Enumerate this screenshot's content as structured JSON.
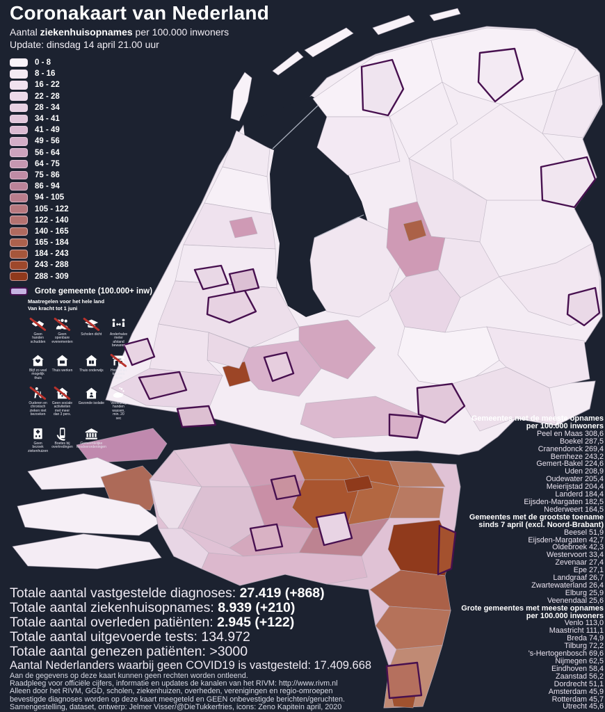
{
  "header": {
    "title": "Coronakaart van Nederland",
    "subtitle_prefix": "Aantal ",
    "subtitle_bold": "ziekenhuisopnames",
    "subtitle_suffix": " per 100.000 inwoners",
    "update": "Update: dinsdag 14 april 21.00 uur"
  },
  "legend": {
    "bins": [
      {
        "range": "0 - 8",
        "color": "#f9f3f9"
      },
      {
        "range": "8 - 16",
        "color": "#f4eaf3"
      },
      {
        "range": "16 - 22",
        "color": "#f0e1ee"
      },
      {
        "range": "22 - 28",
        "color": "#ecd9e8"
      },
      {
        "range": "28 - 34",
        "color": "#e7d0e2"
      },
      {
        "range": "34 - 41",
        "color": "#e1c6da"
      },
      {
        "range": "41 - 49",
        "color": "#dbbad1"
      },
      {
        "range": "49 - 56",
        "color": "#d4aec7"
      },
      {
        "range": "56 - 64",
        "color": "#cda3bd"
      },
      {
        "range": "64 - 75",
        "color": "#c697b1"
      },
      {
        "range": "75 - 86",
        "color": "#c08ca5"
      },
      {
        "range": "86 - 94",
        "color": "#bb8399"
      },
      {
        "range": "94 - 105",
        "color": "#b97d8c"
      },
      {
        "range": "105 - 122",
        "color": "#b7787e"
      },
      {
        "range": "122 - 140",
        "color": "#b47270"
      },
      {
        "range": "140 - 165",
        "color": "#b06a5f"
      },
      {
        "range": "165 - 184",
        "color": "#ac614d"
      },
      {
        "range": "184 - 243",
        "color": "#a6563b"
      },
      {
        "range": "243 - 288",
        "color": "#9e482b"
      },
      {
        "range": "288 - 309",
        "color": "#90391c"
      }
    ],
    "grote_gemeente": {
      "label": "Grote gemeente (100.000+ inw)",
      "fill": "#c6b3e2",
      "border": "#47104f"
    }
  },
  "measures": {
    "title_line1": "Maatregelen voor het hele land",
    "title_line2": "Van kracht tot 1 juni",
    "items": [
      {
        "icon": "handshake",
        "banned": true,
        "label": "Geen handen schudden"
      },
      {
        "icon": "crowd",
        "banned": true,
        "label": "Geen openbare evenementen"
      },
      {
        "icon": "grad-cap",
        "banned": true,
        "label": "Scholen dicht"
      },
      {
        "icon": "distance",
        "banned": false,
        "label": "Anderhalve meter afstand bewaren"
      },
      {
        "icon": "house-heart",
        "banned": false,
        "label": "Blijf zo veel mogelijk thuis"
      },
      {
        "icon": "house-laptop",
        "banned": false,
        "label": "Thuis werken"
      },
      {
        "icon": "house-book",
        "banned": false,
        "label": "Thuis onderwijs"
      },
      {
        "icon": "storefront",
        "banned": true,
        "label": "Horeca en kappers dicht"
      },
      {
        "icon": "walker",
        "banned": true,
        "label": "Ouderen en chronisch zieken niet bezoeken"
      },
      {
        "icon": "house-group",
        "banned": true,
        "label": "Geen sociale activiteiten met meer dan 3 pers."
      },
      {
        "icon": "house-person",
        "banned": false,
        "label": "Gezonde isolatie"
      },
      {
        "icon": "wash-hands",
        "banned": false,
        "label": "Veelvuldig handen wassen, min. 20 sec"
      },
      {
        "icon": "hospital",
        "banned": false,
        "label": "Geen bezoek ziekenhuizen"
      },
      {
        "icon": "phone",
        "banned": false,
        "label": "Boetes bij overtredingen"
      },
      {
        "icon": "bank",
        "banned": false,
        "label": "Gemeentelijke noodverordeningen"
      }
    ]
  },
  "rankings": [
    {
      "title": "Gemeentes met de meeste opnames per 100.000 inwoners",
      "entries": [
        {
          "name": "Peel en Maas",
          "value": "308,6"
        },
        {
          "name": "Boekel",
          "value": "287,5"
        },
        {
          "name": "Cranendonck",
          "value": "269,4"
        },
        {
          "name": "Bernheze",
          "value": "243,2"
        },
        {
          "name": "Gemert-Bakel",
          "value": "224,6"
        },
        {
          "name": "Uden",
          "value": "208,9"
        },
        {
          "name": "Oudewater",
          "value": "205,4"
        },
        {
          "name": "Meierijstad",
          "value": "204,4"
        },
        {
          "name": "Landerd",
          "value": "184,4"
        },
        {
          "name": "Eijsden-Margaten",
          "value": "182,5"
        },
        {
          "name": "Nederweert",
          "value": "164,5"
        }
      ]
    },
    {
      "title": "Gemeentes met de grootste toename sinds 7 april (excl. Noord-Brabant)",
      "entries": [
        {
          "name": "Beesel",
          "value": "51,9"
        },
        {
          "name": "Eijsden-Margaten",
          "value": "42,7"
        },
        {
          "name": "Oldebroek",
          "value": "42,3"
        },
        {
          "name": "Westervoort",
          "value": "33,4"
        },
        {
          "name": "Zevenaar",
          "value": "27,4"
        },
        {
          "name": "Epe",
          "value": "27,1"
        },
        {
          "name": "Landgraaf",
          "value": "26,7"
        },
        {
          "name": "Zwartewaterland",
          "value": "26,4"
        },
        {
          "name": "Elburg",
          "value": "25,9"
        },
        {
          "name": "Veenendaal",
          "value": "25,6"
        }
      ]
    },
    {
      "title": "Grote gemeentes met meeste opnames per 100.000 inwoners",
      "entries": [
        {
          "name": "Venlo",
          "value": "113,0"
        },
        {
          "name": "Maastricht",
          "value": "111,1"
        },
        {
          "name": "Breda",
          "value": "74,9"
        },
        {
          "name": "Tilburg",
          "value": "72,2"
        },
        {
          "name": "'s-Hertogenbosch",
          "value": "69,6"
        },
        {
          "name": "Nijmegen",
          "value": "62,5"
        },
        {
          "name": "Eindhoven",
          "value": "58,4"
        },
        {
          "name": "Zaanstad",
          "value": "56,2"
        },
        {
          "name": "Dordrecht",
          "value": "51,1"
        },
        {
          "name": "Amsterdam",
          "value": "45,9"
        },
        {
          "name": "Rotterdam",
          "value": "45,7"
        },
        {
          "name": "Utrecht",
          "value": "45,6"
        }
      ]
    }
  ],
  "stats": [
    {
      "label": "Totale aantal vastgestelde diagnoses: ",
      "value": "27.419 (+868)",
      "bold": true,
      "small": false
    },
    {
      "label": "Totale aantal ziekenhuisopnames: ",
      "value": "8.939 (+210)",
      "bold": true,
      "small": false
    },
    {
      "label": "Totale aantal overleden patiënten: ",
      "value": "2.945 (+122)",
      "bold": true,
      "small": false
    },
    {
      "label": "Totale aantal uitgevoerde tests: ",
      "value": "134.972",
      "bold": false,
      "small": false
    },
    {
      "label": "Totale aantal genezen patiënten: ",
      "value": ">3000",
      "bold": false,
      "small": false
    },
    {
      "label": "Aantal Nederlanders waarbij geen COVID19 is vastgesteld: ",
      "value": "17.409.668",
      "bold": false,
      "small": true
    }
  ],
  "footnotes": [
    "Aan de gegevens op deze kaart kunnen geen rechten worden ontleend.",
    "Raadpleeg voor officiële cijfers, informatie en updates de kanalen van het RIVM: http://www.rivm.nl",
    "Alleen door het RIVM, GGD, scholen, ziekenhuizen, overheden, verenigingen en regio-omroepen",
    "bevestigde diagnoses worden op deze kaart meegeteld en GEEN onbevestigde berichten/geruchten.",
    "Samengestelling, dataset, ontwerp: Jelmer Visser/@DieTukkerfries, icons: Zeno Kapitein april, 2020"
  ],
  "colors": {
    "background": "#1c2230",
    "grote_gemeente_border": "#47104f",
    "municipality_border": "#b4abba",
    "max_value_fill": "#90391c"
  }
}
